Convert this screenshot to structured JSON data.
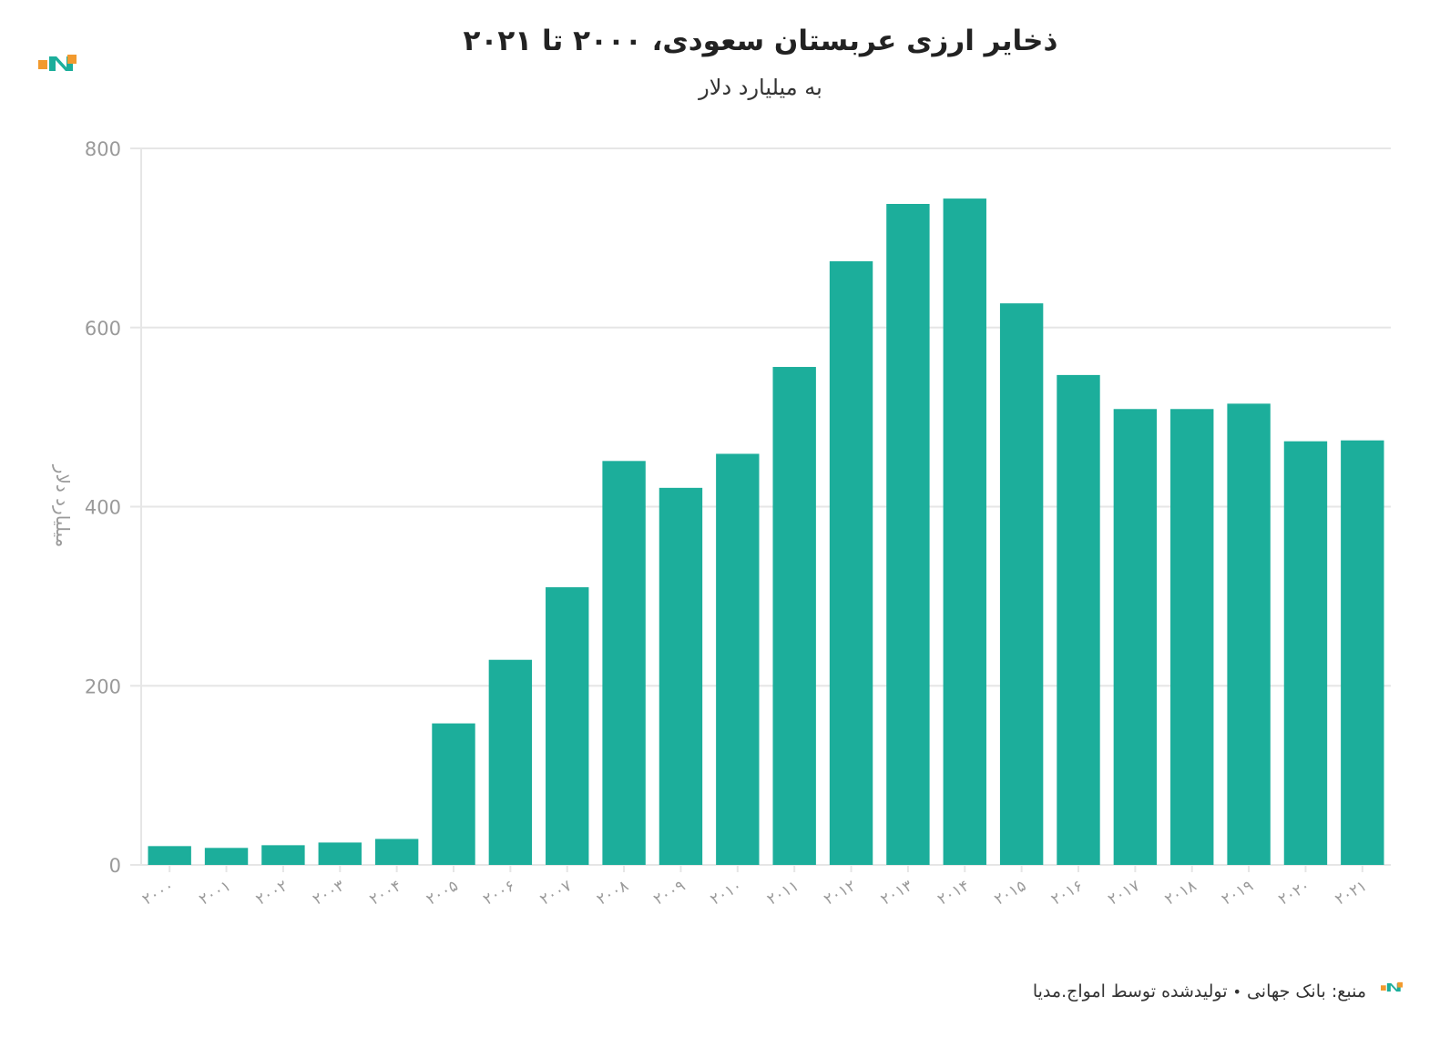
{
  "title": "ذخایر ارزی عربستان سعودی، ۲۰۰۰ تا ۲۰۲۱",
  "subtitle": "به میلیارد دلار",
  "colors": {
    "bar": "#1cae9b",
    "grid": "#e6e6e6",
    "axis_text": "#9a9a9a",
    "title_text": "#222222",
    "logo_orange": "#f29a2e",
    "logo_teal": "#1cae9b"
  },
  "icons": {
    "top_logo": "amwaj-media-logo",
    "footer_logo": "amwaj-media-logo"
  },
  "footer": {
    "source_label": "منبع: بانک جهانی",
    "separator": "•",
    "producer": "تولیدشده توسط امواج.مدیا"
  },
  "chart_data": {
    "type": "bar",
    "title": "ذخایر ارزی عربستان سعودی، ۲۰۰۰ تا ۲۰۲۱",
    "subtitle": "به میلیارد دلار",
    "xlabel": "",
    "ylabel": "میلیارد دلار",
    "ylim": [
      0,
      800
    ],
    "yticks": [
      0,
      200,
      400,
      600,
      800
    ],
    "grid": true,
    "legend": "none",
    "categories": [
      "۲۰۰۰",
      "۲۰۰۱",
      "۲۰۰۲",
      "۲۰۰۳",
      "۲۰۰۴",
      "۲۰۰۵",
      "۲۰۰۶",
      "۲۰۰۷",
      "۲۰۰۸",
      "۲۰۰۹",
      "۲۰۱۰",
      "۲۰۱۱",
      "۲۰۱۲",
      "۲۰۱۳",
      "۲۰۱۴",
      "۲۰۱۵",
      "۲۰۱۶",
      "۲۰۱۷",
      "۲۰۱۸",
      "۲۰۱۹",
      "۲۰۲۰",
      "۲۰۲۱"
    ],
    "values": [
      21,
      19,
      22,
      25,
      29,
      158,
      229,
      310,
      451,
      421,
      459,
      556,
      674,
      738,
      744,
      627,
      547,
      509,
      509,
      515,
      473,
      474
    ]
  }
}
